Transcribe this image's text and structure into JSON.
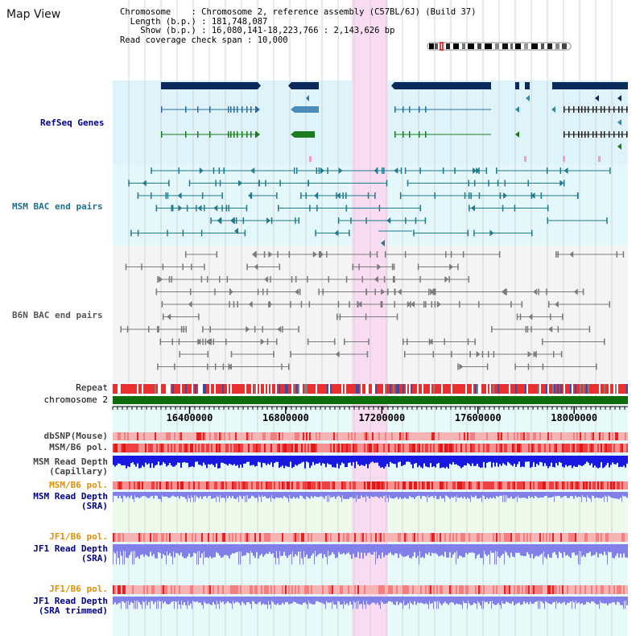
{
  "title": "Map View",
  "info": {
    "chromosome_key": "Chromosome",
    "chromosome_val": "Chromosome 2, reference assembly (C57BL/6J) (Build 37)",
    "length_key": "Length (b.p.)",
    "length_val": "181,748,087",
    "show_key": "Show (b.p.)",
    "show_val": "16,080,141-18,223,766 : 2,143,626 bp",
    "coverage_key": "Read coverage check span",
    "coverage_val": "10,000"
  },
  "tracks": {
    "refseq": "RefSeq Genes",
    "msm_bac": "MSM BAC end pairs",
    "b6n_bac": "B6N BAC end pairs",
    "repeat": "Repeat",
    "chromosome": "chromosome 2",
    "dbsnp": "dbSNP(Mouse)",
    "msm_b6_pol": "MSM/B6 pol.",
    "msm_depth_cap_1": "MSM Read Depth",
    "msm_depth_cap_2": "(Capillary)",
    "msm_b6_pol_2": "MSM/B6 pol.",
    "msm_depth_sra_1": "MSM Read Depth",
    "msm_depth_sra_2": "(SRA)",
    "jf1_b6_pol": "JF1/B6 pol.",
    "jf1_depth_sra_1": "JF1 Read Depth",
    "jf1_depth_sra_2": "(SRA)",
    "jf1_b6_pol_2": "JF1/B6 pol.",
    "jf1_depth_trim_1": "JF1 Read Depth",
    "jf1_depth_trim_2": "(SRA trimmed)"
  },
  "axis": {
    "range_bp": [
      16080141,
      18223766
    ],
    "ticks": [
      {
        "value": 16400000,
        "label": "16400000"
      },
      {
        "value": 16800000,
        "label": "16800000"
      },
      {
        "value": 17200000,
        "label": "17200000"
      },
      {
        "value": 17600000,
        "label": "17600000"
      },
      {
        "value": 18000000,
        "label": "18000000"
      }
    ],
    "highlight_bp": [
      17075000,
      17225000
    ]
  },
  "colors": {
    "refseq_bg": "#dff3fb",
    "msm_bg": "#e4f7fa",
    "b6n_bg": "#f4f4f4",
    "highlight": "#f9dcf2",
    "gene_dark": "#0b2a5c",
    "gene_blue": "#2b6d9e",
    "gene_green": "#1d7a1d",
    "msm_pair": "#1f7a8c",
    "b6n_pair": "#7a7a7a",
    "chromosome": "#0b6e0b",
    "depth_blue": "#1818e0",
    "depth_light": "#8080e8",
    "pol_red": "#e83030",
    "orange_label": "#e09000",
    "navy_label": "#00008b"
  }
}
